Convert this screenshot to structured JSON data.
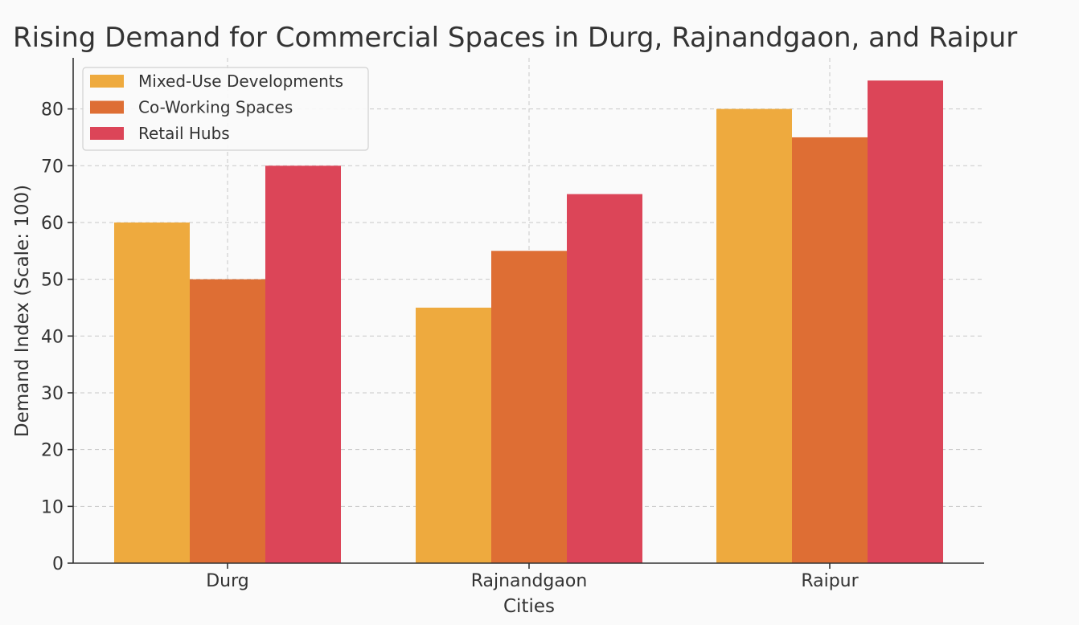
{
  "chart_data": {
    "type": "bar",
    "title": "Rising Demand for Commercial Spaces in Durg, Rajnandgaon, and Raipur",
    "xlabel": "Cities",
    "ylabel": "Demand Index (Scale: 100)",
    "categories": [
      "Durg",
      "Rajnandgaon",
      "Raipur"
    ],
    "series": [
      {
        "name": "Mixed-Use Developments",
        "color": "#eeaa3e",
        "values": [
          60,
          45,
          80
        ]
      },
      {
        "name": "Co-Working Spaces",
        "color": "#de6e34",
        "values": [
          50,
          55,
          75
        ]
      },
      {
        "name": "Retail Hubs",
        "color": "#dc4558",
        "values": [
          70,
          65,
          85
        ]
      }
    ],
    "ylim": [
      0,
      89
    ],
    "yticks": [
      0,
      10,
      20,
      30,
      40,
      50,
      60,
      70,
      80
    ],
    "grid": true,
    "legend_position": "top-left"
  }
}
